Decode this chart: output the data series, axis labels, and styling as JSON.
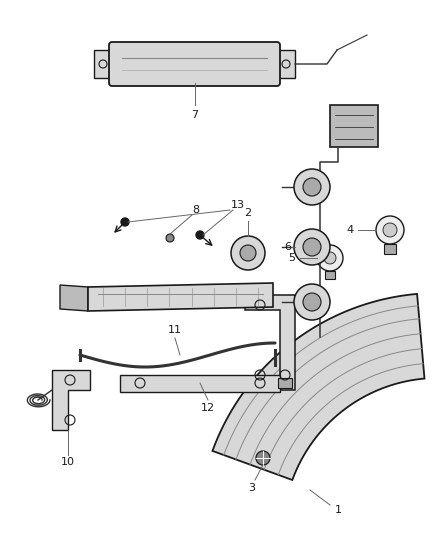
{
  "background_color": "#ffffff",
  "fig_width": 4.38,
  "fig_height": 5.33,
  "dpi": 100,
  "color_main": "#1a1a1a",
  "color_fill": "#d8d8d8",
  "color_light": "#eeeeee",
  "color_wire": "#333333",
  "color_leader": "#666666"
}
